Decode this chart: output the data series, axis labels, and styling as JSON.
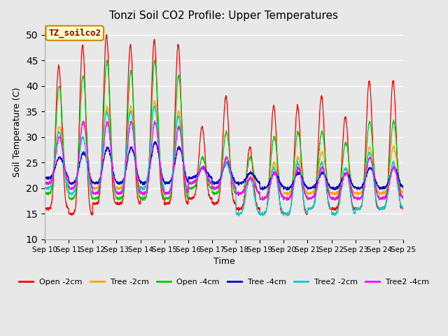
{
  "title": "Tonzi Soil CO2 Profile: Upper Temperatures",
  "xlabel": "Time",
  "ylabel": "Soil Temperature (C)",
  "ylim": [
    10,
    52
  ],
  "yticks": [
    10,
    15,
    20,
    25,
    30,
    35,
    40,
    45,
    50
  ],
  "figsize": [
    6.4,
    4.8
  ],
  "dpi": 100,
  "background_color": "#e8e8e8",
  "series_colors": {
    "Open -2cm": "#ff0000",
    "Tree -2cm": "#ffa500",
    "Open -4cm": "#00cc00",
    "Tree -4cm": "#0000cc",
    "Tree2 -2cm": "#00cccc",
    "Tree2 -4cm": "#ff00ff"
  },
  "annotation_text": "TZ_soilco2",
  "annotation_box_color": "#ffffcc",
  "annotation_box_edge": "#cc8800",
  "days": [
    "Sep 10",
    "Sep 11",
    "Sep 12",
    "Sep 13",
    "Sep 14",
    "Sep 15",
    "Sep 16",
    "Sep 17",
    "Sep 18",
    "Sep 19",
    "Sep 20",
    "Sep 21",
    "Sep 22",
    "Sep 23",
    "Sep 24",
    "Sep 25"
  ]
}
